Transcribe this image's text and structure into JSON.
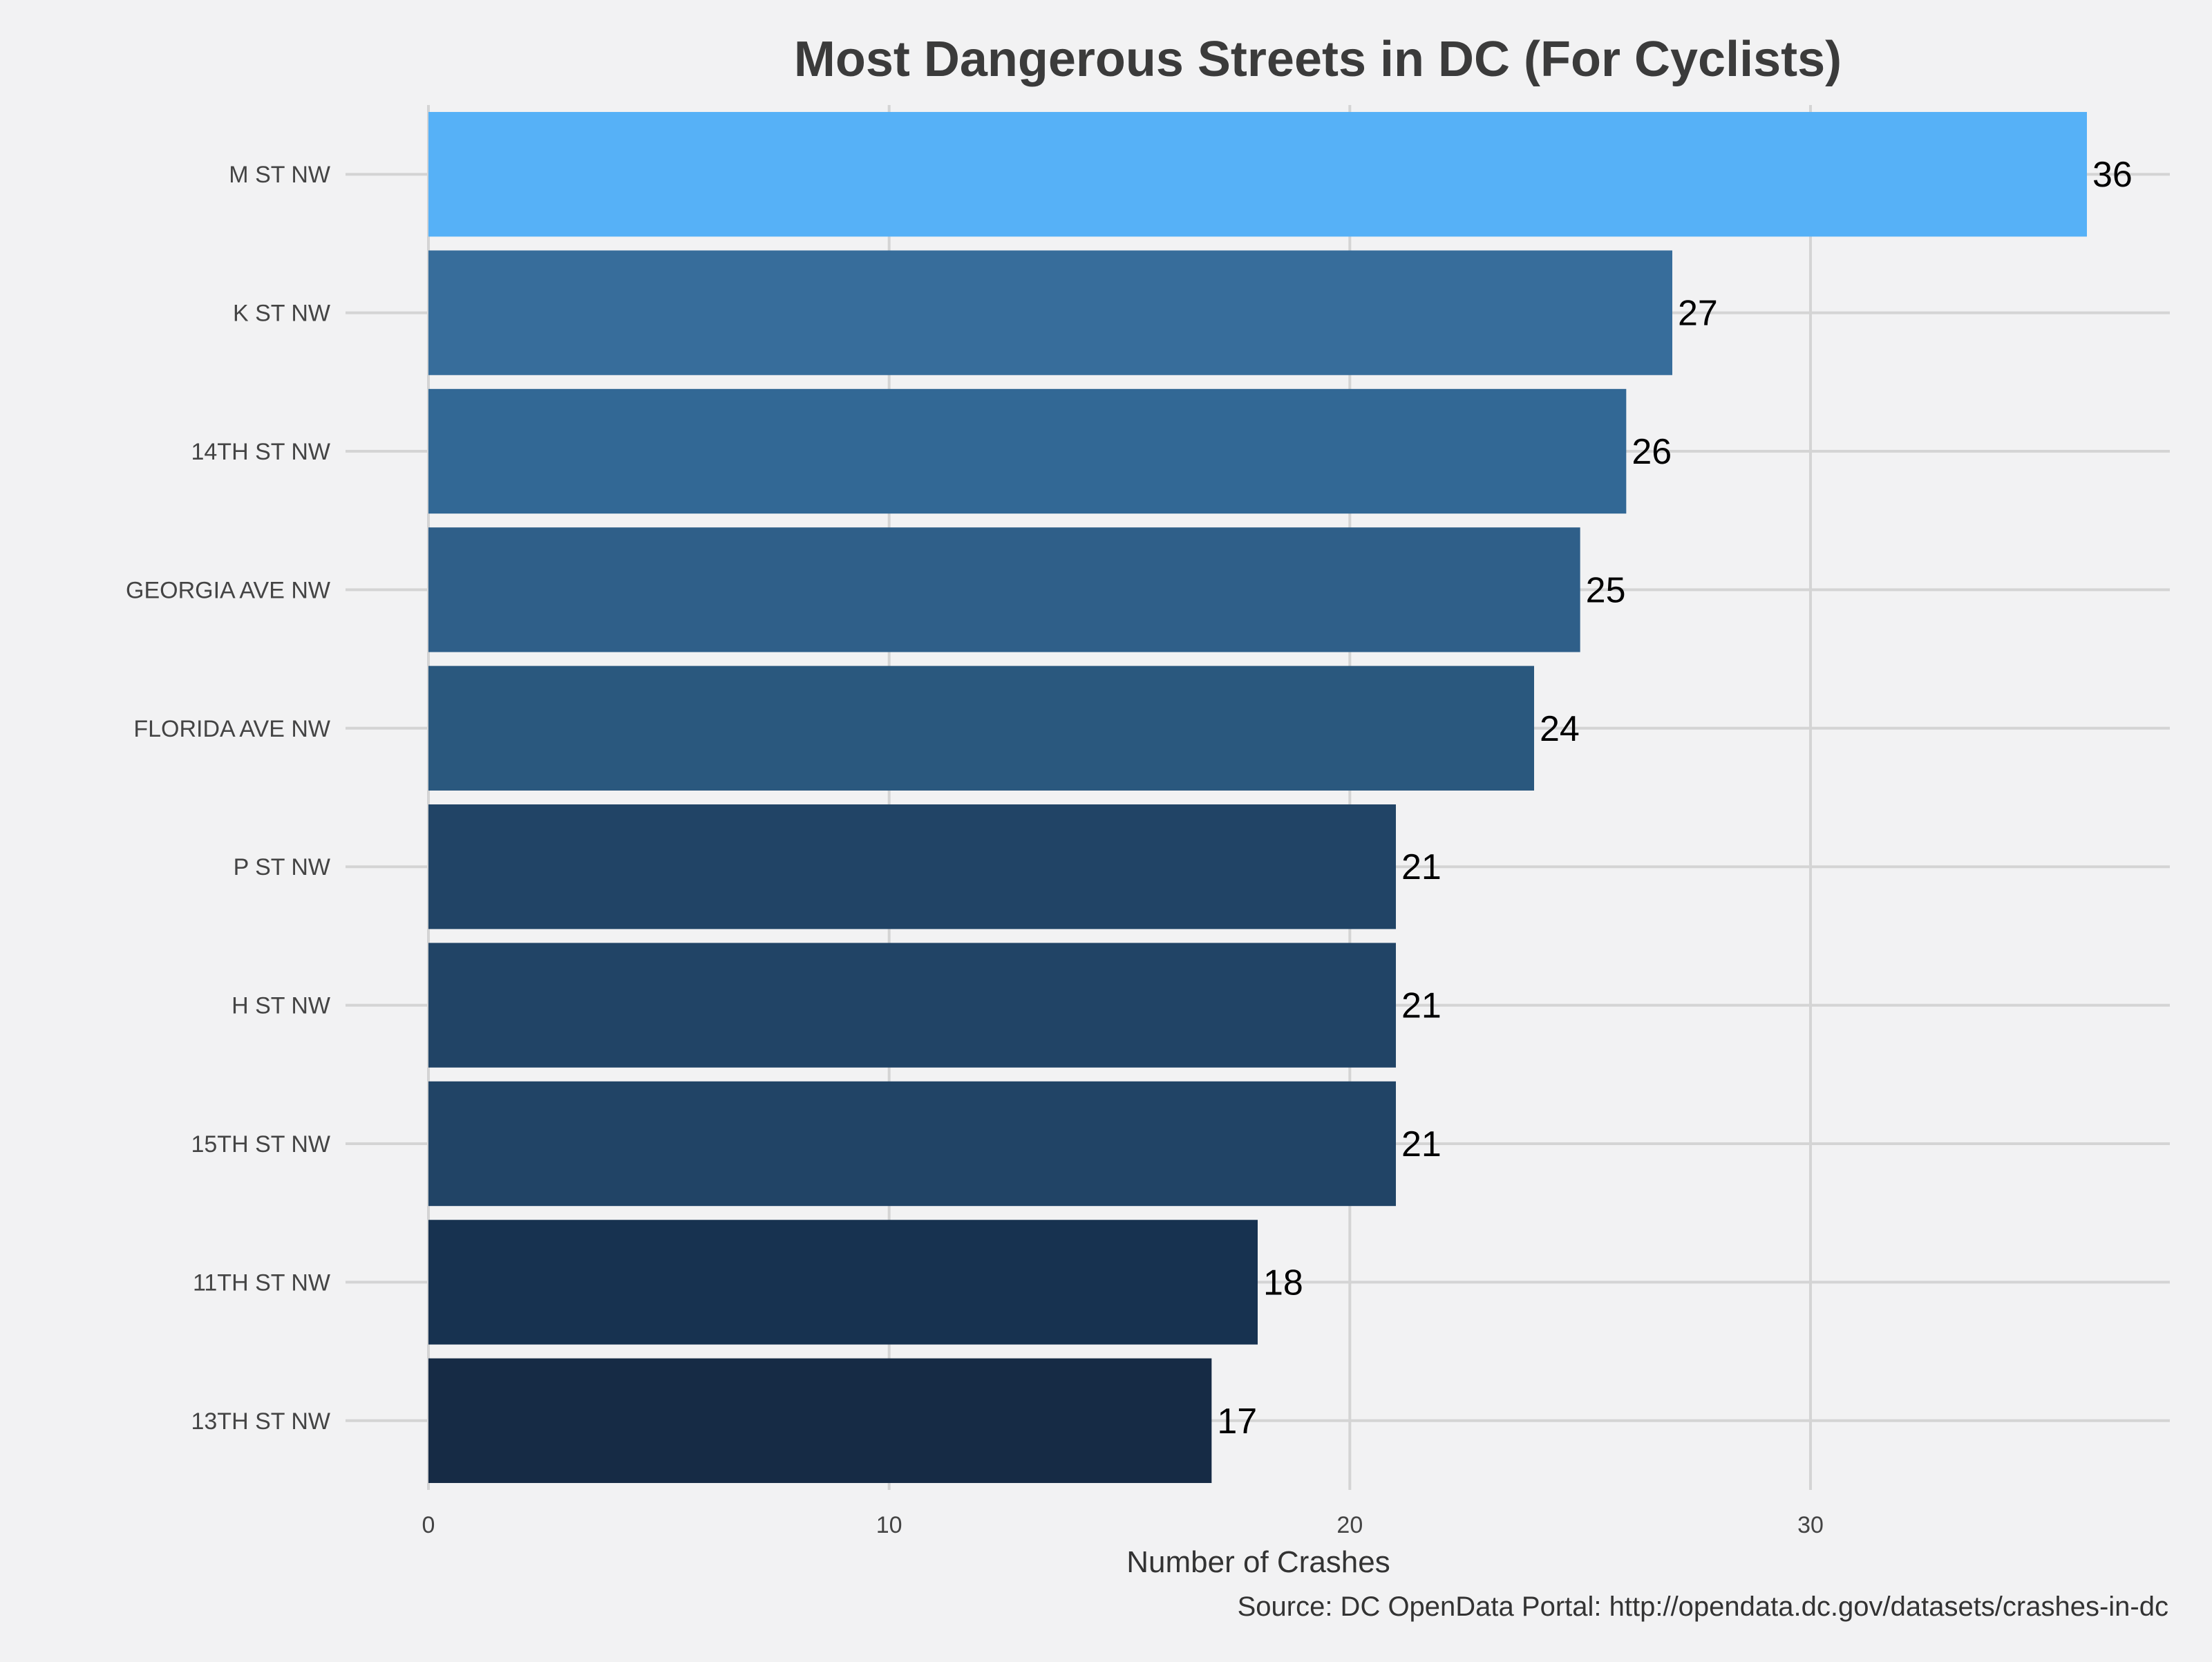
{
  "chart_data": {
    "type": "bar",
    "orientation": "horizontal",
    "title": "Most Dangerous Streets in DC (For Cyclists)",
    "xlabel": "Number of Crashes",
    "ylabel": "",
    "source": "Source: DC OpenData Portal: http://opendata.dc.gov/datasets/crashes-in-dc",
    "categories": [
      "M ST NW",
      "K ST NW",
      "14TH ST NW",
      "GEORGIA AVE NW",
      "FLORIDA AVE NW",
      "P ST NW",
      "H ST NW",
      "15TH ST NW",
      "11TH ST NW",
      "13TH ST NW"
    ],
    "values": [
      36,
      27,
      26,
      25,
      24,
      21,
      21,
      21,
      18,
      17
    ],
    "colors": [
      "#56b1f7",
      "#376d9b",
      "#326895",
      "#2f5f89",
      "#2a587e",
      "#214466",
      "#214466",
      "#214466",
      "#173250",
      "#162b45"
    ],
    "xlim": [
      -1.8,
      37.8
    ],
    "xticks": [
      0,
      10,
      20,
      30
    ],
    "grid": true,
    "legend": "none"
  }
}
